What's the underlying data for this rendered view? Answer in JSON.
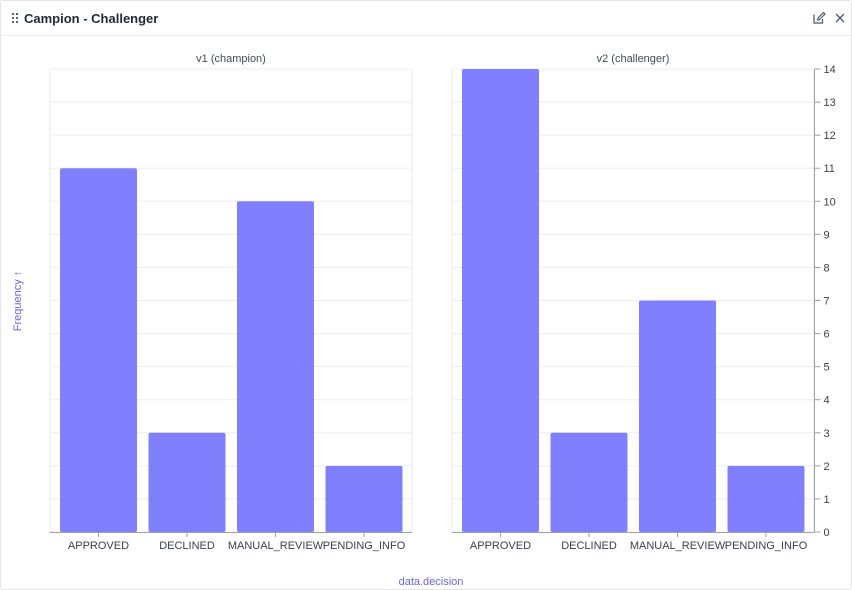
{
  "panel": {
    "title": "Campion - Challenger",
    "icons": {
      "drag": "drag-handle-icon",
      "edit": "edit-icon",
      "close": "close-icon"
    }
  },
  "chart_data": {
    "type": "bar",
    "facets": [
      "v1 (champion)",
      "v2 (challenger)"
    ],
    "categories": [
      "APPROVED",
      "DECLINED",
      "MANUAL_REVIEW",
      "PENDING_INFO"
    ],
    "series": [
      {
        "name": "v1 (champion)",
        "values": [
          11,
          3,
          10,
          2
        ]
      },
      {
        "name": "v2 (challenger)",
        "values": [
          14,
          3,
          7,
          2
        ]
      }
    ],
    "xlabel": "data.decision",
    "ylabel": "Frequency ↑",
    "ylim": [
      0,
      14
    ],
    "yticks": [
      0,
      1,
      2,
      3,
      4,
      5,
      6,
      7,
      8,
      9,
      10,
      11,
      12,
      13,
      14
    ],
    "y_axis_side": "right",
    "grid": true,
    "bar_color": "#8080ff",
    "label_color": "#6a63e6"
  }
}
